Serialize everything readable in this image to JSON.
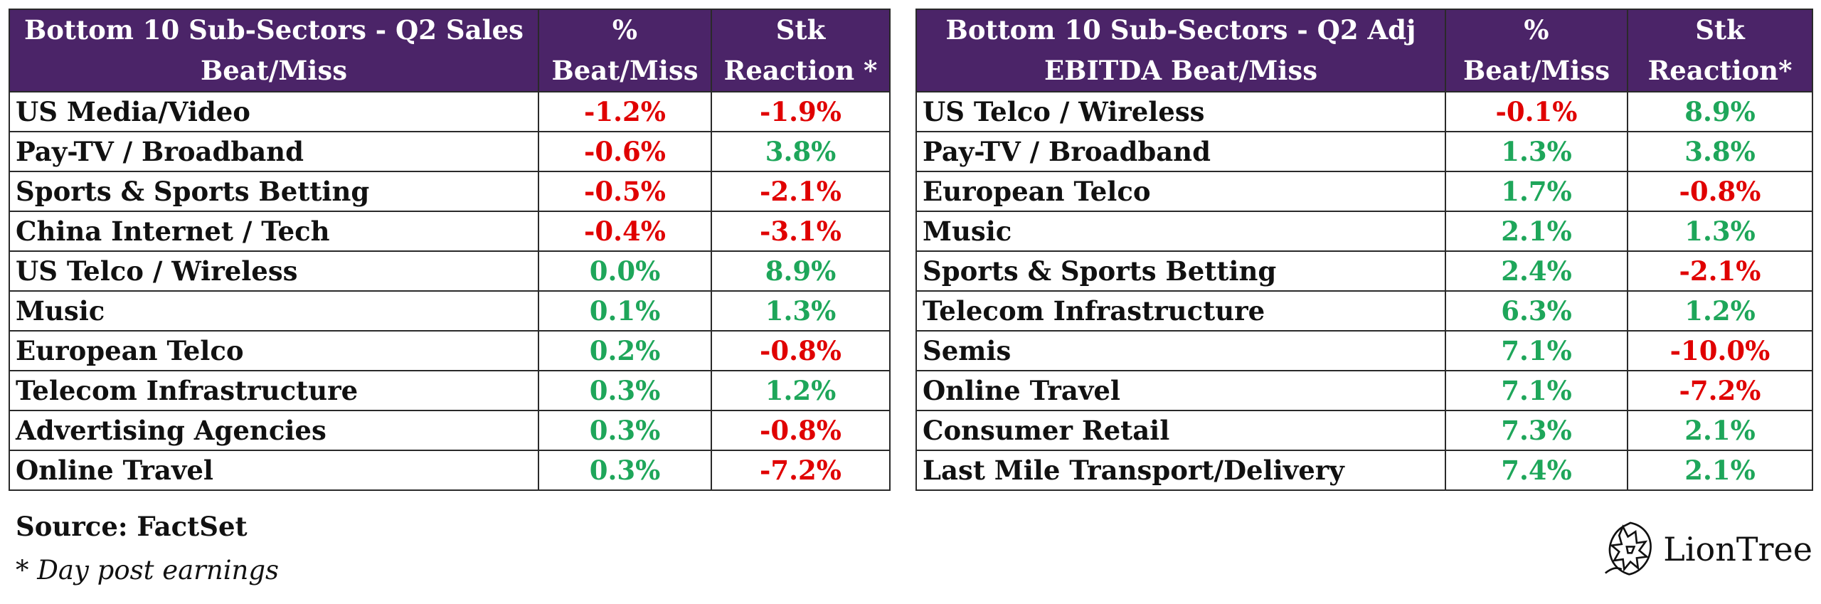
{
  "left_table": {
    "headers": [
      "Bottom 10 Sub-Sectors - Q2 Sales Beat/Miss",
      "% Beat/Miss",
      "Stk Reaction *"
    ],
    "rows": [
      {
        "sector": "US Media/Video",
        "beat": "-1.2%",
        "reaction": "-1.9%"
      },
      {
        "sector": "Pay-TV / Broadband",
        "beat": "-0.6%",
        "reaction": "3.8%"
      },
      {
        "sector": "Sports & Sports Betting",
        "beat": "-0.5%",
        "reaction": "-2.1%"
      },
      {
        "sector": "China Internet / Tech",
        "beat": "-0.4%",
        "reaction": "-3.1%"
      },
      {
        "sector": "US Telco / Wireless",
        "beat": "0.0%",
        "reaction": "8.9%"
      },
      {
        "sector": "Music",
        "beat": "0.1%",
        "reaction": "1.3%"
      },
      {
        "sector": "European Telco",
        "beat": "0.2%",
        "reaction": "-0.8%"
      },
      {
        "sector": "Telecom Infrastructure",
        "beat": "0.3%",
        "reaction": "1.2%"
      },
      {
        "sector": "Advertising Agencies",
        "beat": "0.3%",
        "reaction": "-0.8%"
      },
      {
        "sector": "Online Travel",
        "beat": "0.3%",
        "reaction": "-7.2%"
      }
    ]
  },
  "right_table": {
    "headers": [
      "Bottom 10 Sub-Sectors - Q2 Adj EBITDA Beat/Miss",
      "% Beat/Miss",
      "Stk Reaction*"
    ],
    "rows": [
      {
        "sector": "US Telco / Wireless",
        "beat": "-0.1%",
        "reaction": "8.9%"
      },
      {
        "sector": "Pay-TV / Broadband",
        "beat": "1.3%",
        "reaction": "3.8%"
      },
      {
        "sector": "European Telco",
        "beat": "1.7%",
        "reaction": "-0.8%"
      },
      {
        "sector": "Music",
        "beat": "2.1%",
        "reaction": "1.3%"
      },
      {
        "sector": "Sports & Sports Betting",
        "beat": "2.4%",
        "reaction": "-2.1%"
      },
      {
        "sector": "Telecom Infrastructure",
        "beat": "6.3%",
        "reaction": "1.2%"
      },
      {
        "sector": "Semis",
        "beat": "7.1%",
        "reaction": "-10.0%"
      },
      {
        "sector": "Online Travel",
        "beat": "7.1%",
        "reaction": "-7.2%"
      },
      {
        "sector": "Consumer Retail",
        "beat": "7.3%",
        "reaction": "2.1%"
      },
      {
        "sector": "Last Mile Transport/Delivery",
        "beat": "7.4%",
        "reaction": "2.1%"
      }
    ]
  },
  "source": "Source: FactSet",
  "footnote": "* Day post earnings",
  "logo": {
    "text": "LionTree",
    "icon": "lion-head-icon"
  },
  "colors": {
    "header_bg": "#4b2468",
    "positive": "#1ea65a",
    "negative": "#e00000"
  }
}
